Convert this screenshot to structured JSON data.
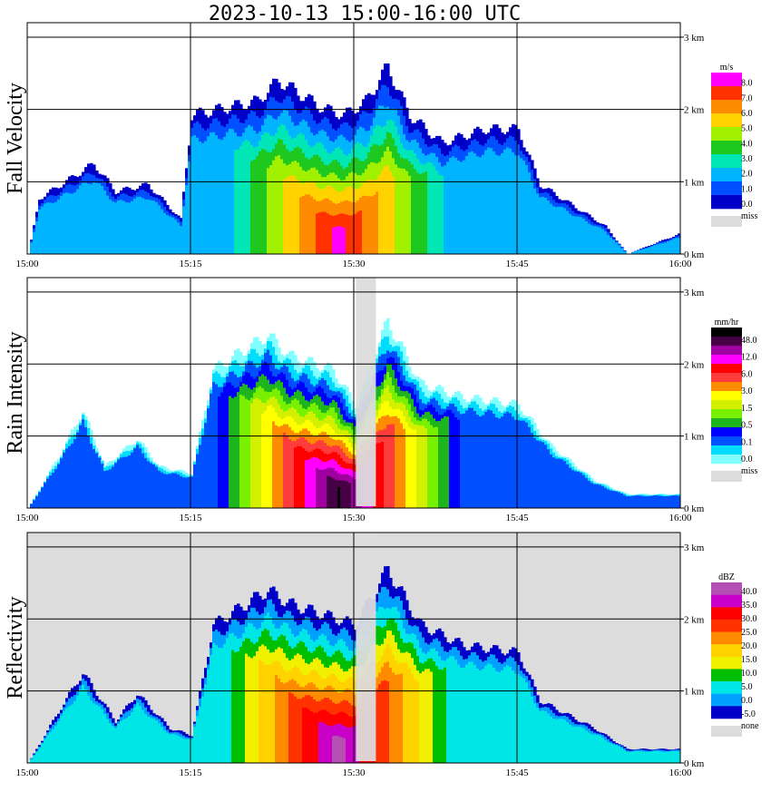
{
  "title": "2023-10-13   15:00-16:00 UTC",
  "chart_data": [
    {
      "type": "heatmap",
      "panel": "fall-velocity",
      "ylabel": "Fall Velocity",
      "x_ticks": [
        "15:00",
        "15:15",
        "15:30",
        "15:45",
        "16:00"
      ],
      "y_ticks": [
        "0 km",
        "1 km",
        "2 km",
        "3 km"
      ],
      "ylim_km": [
        0,
        3.2
      ],
      "colorbar": {
        "unit": "m/s",
        "labels": [
          "8.0",
          "7.0",
          "6.0",
          "5.0",
          "4.0",
          "3.0",
          "2.0",
          "1.0",
          "0.0"
        ],
        "colors": [
          "#ff00ff",
          "#ff3200",
          "#ff8c00",
          "#ffd200",
          "#a0f000",
          "#1ec81e",
          "#00e6b4",
          "#00b4ff",
          "#0050ff",
          "#0000c8"
        ],
        "miss_label": "miss",
        "miss_color": "#dcdcdc"
      },
      "echo_top_profile": [
        {
          "t": "15:00",
          "top_km": 0.0
        },
        {
          "t": "15:01",
          "top_km": 0.8
        },
        {
          "t": "15:04",
          "top_km": 1.1
        },
        {
          "t": "15:06",
          "top_km": 1.3
        },
        {
          "t": "15:08",
          "top_km": 0.9
        },
        {
          "t": "15:11",
          "top_km": 1.0
        },
        {
          "t": "15:14",
          "top_km": 0.5
        },
        {
          "t": "15:15",
          "top_km": 2.0
        },
        {
          "t": "15:21",
          "top_km": 2.2
        },
        {
          "t": "15:23",
          "top_km": 2.5
        },
        {
          "t": "15:27",
          "top_km": 2.1
        },
        {
          "t": "15:29",
          "top_km": 2.0
        },
        {
          "t": "15:31",
          "top_km": 2.2
        },
        {
          "t": "15:33",
          "top_km": 2.7
        },
        {
          "t": "15:35",
          "top_km": 2.0
        },
        {
          "t": "15:38",
          "top_km": 1.6
        },
        {
          "t": "15:42",
          "top_km": 1.8
        },
        {
          "t": "15:45",
          "top_km": 1.8
        },
        {
          "t": "15:47",
          "top_km": 1.0
        },
        {
          "t": "15:50",
          "top_km": 0.7
        },
        {
          "t": "15:53",
          "top_km": 0.4
        },
        {
          "t": "15:55",
          "top_km": 0.0
        },
        {
          "t": "16:00",
          "top_km": 0.3
        }
      ]
    },
    {
      "type": "heatmap",
      "panel": "rain-intensity",
      "ylabel": "Rain Intensity",
      "x_ticks": [
        "15:00",
        "15:15",
        "15:30",
        "15:45",
        "16:00"
      ],
      "y_ticks": [
        "0 km",
        "1 km",
        "2 km",
        "3 km"
      ],
      "ylim_km": [
        0,
        3.2
      ],
      "colorbar": {
        "unit": "mm/hr",
        "labels": [
          "48.0",
          "12.0",
          "6.0",
          "3.0",
          "1.5",
          "0.5",
          "0.1",
          "0.0"
        ],
        "colors": [
          "#000000",
          "#460046",
          "#a000a0",
          "#ff00ff",
          "#ff0000",
          "#ff3c3c",
          "#ff8c00",
          "#ffff00",
          "#d2f000",
          "#78f000",
          "#1eb41e",
          "#0000ff",
          "#0050ff",
          "#00dcff",
          "#82ffff"
        ],
        "miss_label": "miss",
        "miss_color": "#dcdcdc"
      },
      "echo_top_profile": [
        {
          "t": "15:00",
          "top_km": 0.0
        },
        {
          "t": "15:03",
          "top_km": 0.8
        },
        {
          "t": "15:05",
          "top_km": 1.4
        },
        {
          "t": "15:07",
          "top_km": 0.6
        },
        {
          "t": "15:10",
          "top_km": 1.0
        },
        {
          "t": "15:12",
          "top_km": 0.6
        },
        {
          "t": "15:15",
          "top_km": 0.5
        },
        {
          "t": "15:17",
          "top_km": 2.0
        },
        {
          "t": "15:22",
          "top_km": 2.5
        },
        {
          "t": "15:24",
          "top_km": 2.2
        },
        {
          "t": "15:28",
          "top_km": 2.0
        },
        {
          "t": "15:30",
          "top_km": 1.5
        },
        {
          "t": "15:33",
          "top_km": 2.7
        },
        {
          "t": "15:36",
          "top_km": 1.8
        },
        {
          "t": "15:40",
          "top_km": 1.6
        },
        {
          "t": "15:45",
          "top_km": 1.5
        },
        {
          "t": "15:48",
          "top_km": 0.9
        },
        {
          "t": "15:52",
          "top_km": 0.4
        },
        {
          "t": "15:55",
          "top_km": 0.2
        },
        {
          "t": "16:00",
          "top_km": 0.2
        }
      ]
    },
    {
      "type": "heatmap",
      "panel": "reflectivity",
      "ylabel": "Reflectivity",
      "x_ticks": [
        "15:00",
        "15:15",
        "15:30",
        "15:45",
        "16:00"
      ],
      "y_ticks": [
        "0 km",
        "1 km",
        "2 km",
        "3 km"
      ],
      "ylim_km": [
        0,
        3.2
      ],
      "colorbar": {
        "unit": "dBZ",
        "labels": [
          "40.0",
          "35.0",
          "30.0",
          "25.0",
          "20.0",
          "15.0",
          "10.0",
          "5.0",
          "0.0",
          "-5.0"
        ],
        "colors": [
          "#b450b4",
          "#c800c8",
          "#ff0000",
          "#ff3200",
          "#ff8c00",
          "#ffd200",
          "#f0f000",
          "#00be00",
          "#00e6e6",
          "#00a0ff",
          "#0000c8"
        ],
        "miss_label": "none",
        "miss_color": "#dcdcdc"
      },
      "echo_top_profile": [
        {
          "t": "15:00",
          "top_km": 0.0
        },
        {
          "t": "15:03",
          "top_km": 0.8
        },
        {
          "t": "15:05",
          "top_km": 1.3
        },
        {
          "t": "15:08",
          "top_km": 0.6
        },
        {
          "t": "15:10",
          "top_km": 1.0
        },
        {
          "t": "15:13",
          "top_km": 0.5
        },
        {
          "t": "15:15",
          "top_km": 0.4
        },
        {
          "t": "15:17",
          "top_km": 2.0
        },
        {
          "t": "15:22",
          "top_km": 2.5
        },
        {
          "t": "15:24",
          "top_km": 2.3
        },
        {
          "t": "15:28",
          "top_km": 2.1
        },
        {
          "t": "15:30",
          "top_km": 2.0
        },
        {
          "t": "15:33",
          "top_km": 2.8
        },
        {
          "t": "15:36",
          "top_km": 2.0
        },
        {
          "t": "15:40",
          "top_km": 1.7
        },
        {
          "t": "15:45",
          "top_km": 1.6
        },
        {
          "t": "15:47",
          "top_km": 0.9
        },
        {
          "t": "15:52",
          "top_km": 0.5
        },
        {
          "t": "15:55",
          "top_km": 0.2
        },
        {
          "t": "16:00",
          "top_km": 0.2
        }
      ]
    }
  ]
}
